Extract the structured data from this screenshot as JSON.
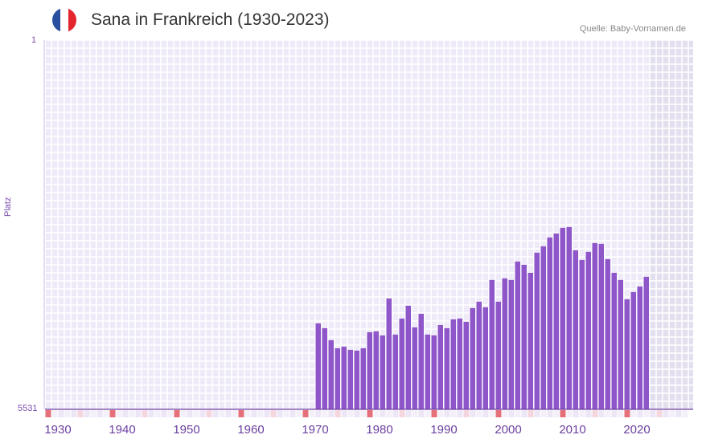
{
  "header": {
    "title": "Sana in Frankreich (1930-2023)",
    "source": "Quelle: Baby-Vornamen.de"
  },
  "colors": {
    "bar": "#8e56c8",
    "grid_bg": "#efeaf8",
    "future_bg": "#e3dfee",
    "marker": "#e5707a",
    "marker_light": "#f4d6df",
    "axis": "#6b3fa0"
  },
  "chart_data": {
    "type": "bar",
    "title": "Sana in Frankreich (1930-2023)",
    "ylabel": "Platz",
    "ylim": [
      1,
      5531
    ],
    "y_inverted": true,
    "y_ticks": [
      "1",
      "5531"
    ],
    "x_range": [
      1928,
      2028
    ],
    "x_ticks": [
      1930,
      1940,
      1950,
      1960,
      1970,
      1980,
      1990,
      2000,
      2010,
      2020
    ],
    "future_from": 2022,
    "x": [
      1970,
      1971,
      1972,
      1973,
      1974,
      1975,
      1976,
      1977,
      1978,
      1979,
      1980,
      1981,
      1982,
      1983,
      1984,
      1985,
      1986,
      1987,
      1988,
      1989,
      1990,
      1991,
      1992,
      1993,
      1994,
      1995,
      1996,
      1997,
      1998,
      1999,
      2000,
      2001,
      2002,
      2003,
      2004,
      2005,
      2006,
      2007,
      2008,
      2009,
      2010,
      2011,
      2012,
      2013,
      2014,
      2015,
      2016,
      2017,
      2018,
      2019,
      2020,
      2021
    ],
    "values": [
      4244,
      4316,
      4496,
      4617,
      4592,
      4640,
      4652,
      4617,
      4376,
      4364,
      4424,
      3871,
      4412,
      4172,
      3979,
      4304,
      4100,
      4412,
      4424,
      4268,
      4316,
      4184,
      4172,
      4220,
      4015,
      3919,
      4003,
      3594,
      3919,
      3570,
      3594,
      3318,
      3366,
      3486,
      3185,
      3089,
      2957,
      2897,
      2813,
      2801,
      3149,
      3294,
      3173,
      3041,
      3053,
      3282,
      3486,
      3594,
      3883,
      3775,
      3691,
      3546
    ]
  }
}
